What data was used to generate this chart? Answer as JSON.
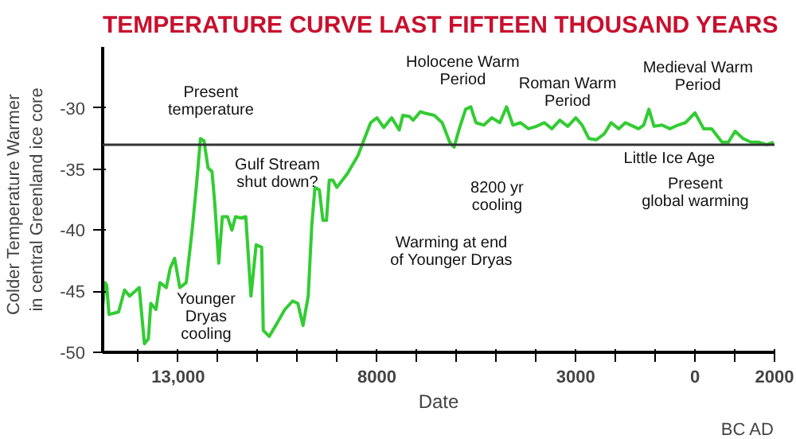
{
  "chart_data": {
    "type": "line",
    "title": "TEMPERATURE CURVE LAST FIFTEEN THOUSAND YEARS",
    "xlabel": "Date",
    "ylabel": "Colder  Temperature  Warmer\nin central Greenland ice core",
    "x": [
      -14900,
      -14840,
      -14800,
      -14740,
      -14500,
      -14350,
      -14220,
      -13980,
      -13850,
      -13750,
      -13690,
      -13560,
      -13460,
      -13300,
      -13200,
      -13090,
      -12960,
      -12800,
      -12650,
      -12540,
      -12440,
      -12350,
      -12250,
      -12150,
      -12080,
      -11980,
      -11890,
      -11760,
      -11650,
      -11560,
      -11430,
      -11300,
      -11170,
      -11040,
      -10900,
      -10860,
      -10710,
      -10510,
      -10320,
      -10120,
      -9990,
      -9860,
      -9730,
      -9640,
      -9560,
      -9450,
      -9360,
      -9270,
      -9200,
      -9110,
      -9010,
      -8750,
      -8480,
      -8160,
      -8000,
      -7830,
      -7630,
      -7440,
      -7350,
      -7180,
      -7090,
      -6910,
      -6820,
      -6560,
      -6360,
      -6170,
      -6060,
      -5930,
      -5770,
      -5640,
      -5510,
      -5310,
      -5110,
      -4910,
      -4740,
      -4580,
      -4390,
      -4190,
      -3990,
      -3790,
      -3600,
      -3400,
      -3200,
      -3000,
      -2840,
      -2670,
      -2480,
      -2280,
      -2110,
      -1920,
      -1750,
      -1550,
      -1420,
      -1290,
      -1160,
      -1030,
      -830,
      -630,
      -430,
      -240,
      0,
      220,
      420,
      680,
      840,
      1010,
      1210,
      1410,
      1610,
      1800,
      1980
    ],
    "values": [
      -46.2,
      -44.3,
      -44.5,
      -46.9,
      -46.7,
      -44.9,
      -45.4,
      -44.7,
      -49.3,
      -48.9,
      -46,
      -46.5,
      -44.3,
      -44.7,
      -43.1,
      -42.3,
      -44.7,
      -44.3,
      -40,
      -36.3,
      -32.5,
      -32.7,
      -34.9,
      -35.2,
      -37.8,
      -42.7,
      -38.9,
      -38.9,
      -40,
      -38.9,
      -39,
      -38.9,
      -45.4,
      -41.2,
      -41.4,
      -48.2,
      -48.7,
      -47.6,
      -46.5,
      -45.8,
      -46,
      -47.8,
      -45.4,
      -39.6,
      -36.5,
      -36.7,
      -39.2,
      -39.2,
      -35.9,
      -35.9,
      -36.5,
      -35.4,
      -33.9,
      -31.2,
      -30.8,
      -31.6,
      -30.8,
      -31.8,
      -30.6,
      -30.7,
      -31.0,
      -30.3,
      -30.4,
      -30.6,
      -31.2,
      -32.8,
      -33.2,
      -31.7,
      -30.1,
      -29.9,
      -31.2,
      -31.4,
      -30.8,
      -31.2,
      -29.9,
      -31.4,
      -31.2,
      -31.7,
      -31.5,
      -31.2,
      -31.7,
      -31.0,
      -31.5,
      -30.8,
      -31.4,
      -32.5,
      -32.6,
      -32.1,
      -31.2,
      -31.7,
      -31.2,
      -31.5,
      -31.7,
      -31.4,
      -30.1,
      -31.5,
      -31.4,
      -31.7,
      -31.4,
      -31.2,
      -30.4,
      -31.7,
      -31.7,
      -32.8,
      -32.8,
      -31.9,
      -32.5,
      -32.8,
      -32.8,
      -33.0,
      -32.8
    ],
    "color": "#33cc33",
    "xlim": [
      -14900,
      2000
    ],
    "xticks": [
      {
        "value": -14000,
        "label": null
      },
      {
        "value": -13000,
        "label": "13,000"
      },
      {
        "value": -12000,
        "label": null
      },
      {
        "value": -11000,
        "label": null
      },
      {
        "value": -10000,
        "label": null
      },
      {
        "value": -9000,
        "label": null
      },
      {
        "value": -8000,
        "label": "8000"
      },
      {
        "value": -7000,
        "label": null
      },
      {
        "value": -6000,
        "label": null
      },
      {
        "value": -5000,
        "label": null
      },
      {
        "value": -4000,
        "label": null
      },
      {
        "value": -3000,
        "label": "3000"
      },
      {
        "value": -2000,
        "label": null
      },
      {
        "value": -1000,
        "label": null
      },
      0,
      {
        "value": 1000,
        "label": null
      },
      2000
    ],
    "ylim": [
      -50,
      -25
    ],
    "yticks": [
      -50,
      -45,
      -40,
      -35,
      -30
    ],
    "grid": false,
    "ref_lines": [
      {
        "axis": "y",
        "value": -33,
        "color": "#333333"
      }
    ],
    "annotations": [
      "Present\ntemperature",
      "Holocene Warm\nPeriod",
      "Roman Warm\nPeriod",
      "Medieval Warm\nPeriod",
      "8200 yr\ncooling",
      "Little Ice Age",
      "Present\nglobal warming",
      "Gulf Stream\nshut down?",
      "Warming at end\nof Younger Dryas",
      "Younger\nDryas\ncooling",
      "BC AD"
    ]
  }
}
